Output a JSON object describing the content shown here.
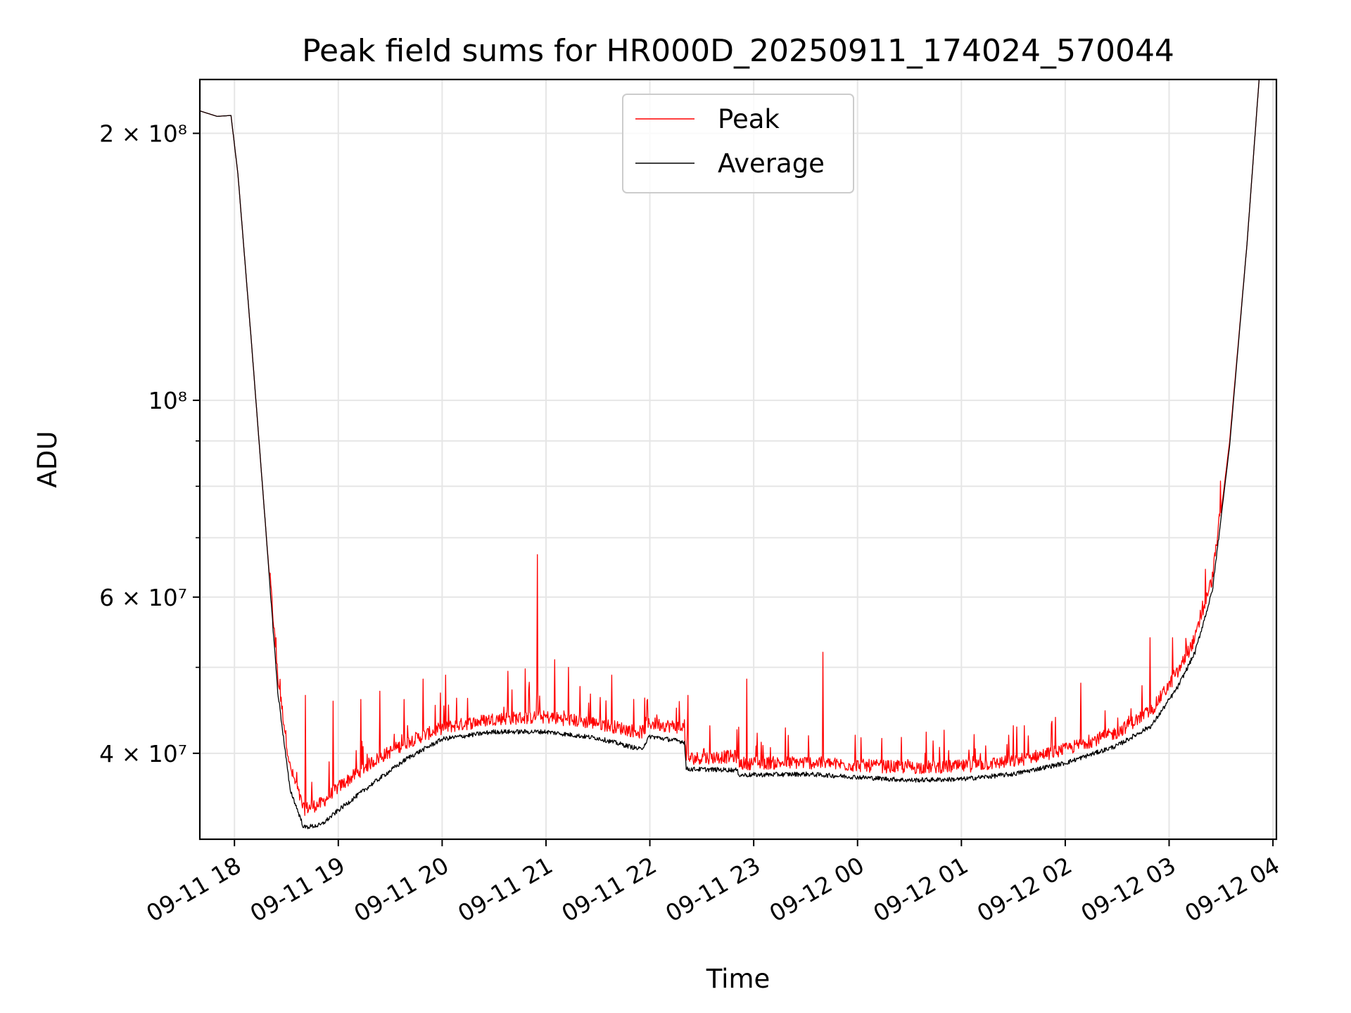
{
  "chart_data": {
    "type": "line",
    "title": "Peak field sums for HR000D_20250911_174024_570044",
    "xlabel": "Time",
    "ylabel": "ADU",
    "yscale": "log",
    "grid": true,
    "legend_position": "top-center",
    "x_ticks": [
      "09-11 18",
      "09-11 19",
      "09-11 20",
      "09-11 21",
      "09-11 22",
      "09-11 23",
      "09-12 00",
      "09-12 01",
      "09-12 02",
      "09-12 03",
      "09-12 04"
    ],
    "x_range": [
      "2025-09-11 17:40",
      "2025-09-12 04:02"
    ],
    "y_ticks_major": [
      {
        "value": 40000000,
        "label": "4 × 10⁷"
      },
      {
        "value": 60000000,
        "label": "6 × 10⁷"
      },
      {
        "value": 100000000,
        "label": "10⁸"
      },
      {
        "value": 200000000,
        "label": "2 × 10⁸"
      }
    ],
    "ylim": [
      32000000,
      230000000
    ],
    "series": [
      {
        "name": "Peak",
        "color": "#ff0000",
        "baseline": [
          [
            "2025-09-11 17:40",
            212000000
          ],
          [
            "2025-09-11 17:50",
            209000000
          ],
          [
            "2025-09-11 17:58",
            209500000
          ],
          [
            "2025-09-11 18:02",
            180000000
          ],
          [
            "2025-09-11 18:10",
            115000000
          ],
          [
            "2025-09-11 18:18",
            72000000
          ],
          [
            "2025-09-11 18:25",
            48000000
          ],
          [
            "2025-09-11 18:32",
            38000000
          ],
          [
            "2025-09-11 18:40",
            34000000
          ],
          [
            "2025-09-11 18:50",
            34500000
          ],
          [
            "2025-09-11 19:00",
            36000000
          ],
          [
            "2025-09-11 19:20",
            38500000
          ],
          [
            "2025-09-11 19:40",
            40500000
          ],
          [
            "2025-09-11 20:00",
            42000000
          ],
          [
            "2025-09-11 20:30",
            43000000
          ],
          [
            "2025-09-11 21:00",
            43200000
          ],
          [
            "2025-09-11 21:30",
            42500000
          ],
          [
            "2025-09-11 21:55",
            41500000
          ],
          [
            "2025-09-11 22:00",
            42500000
          ],
          [
            "2025-09-11 22:20",
            42000000
          ],
          [
            "2025-09-11 22:21",
            38800000
          ],
          [
            "2025-09-11 22:50",
            39000000
          ],
          [
            "2025-09-11 22:52",
            38300000
          ],
          [
            "2025-09-11 23:30",
            38400000
          ],
          [
            "2025-09-12 00:00",
            38100000
          ],
          [
            "2025-09-12 00:30",
            37900000
          ],
          [
            "2025-09-12 01:00",
            38000000
          ],
          [
            "2025-09-12 01:30",
            38500000
          ],
          [
            "2025-09-12 02:00",
            39700000
          ],
          [
            "2025-09-12 02:30",
            41500000
          ],
          [
            "2025-09-12 02:50",
            44000000
          ],
          [
            "2025-09-12 03:05",
            48500000
          ],
          [
            "2025-09-12 03:15",
            53000000
          ],
          [
            "2025-09-12 03:25",
            62000000
          ],
          [
            "2025-09-12 03:35",
            90000000
          ],
          [
            "2025-09-12 03:45",
            150000000
          ],
          [
            "2025-09-12 03:52",
            230000000
          ]
        ],
        "spikes": [
          [
            "2025-09-11 18:24",
            54000000
          ],
          [
            "2025-09-11 18:41",
            46500000
          ],
          [
            "2025-09-11 18:57",
            45800000
          ],
          [
            "2025-09-11 19:13",
            46000000
          ],
          [
            "2025-09-11 19:24",
            47000000
          ],
          [
            "2025-09-11 19:38",
            46000000
          ],
          [
            "2025-09-11 19:49",
            48500000
          ],
          [
            "2025-09-11 20:02",
            49000000
          ],
          [
            "2025-09-11 20:38",
            49500000
          ],
          [
            "2025-09-11 20:48",
            49800000
          ],
          [
            "2025-09-11 20:55",
            67000000
          ],
          [
            "2025-09-11 21:05",
            51000000
          ],
          [
            "2025-09-11 21:13",
            50000000
          ],
          [
            "2025-09-11 21:38",
            49000000
          ],
          [
            "2025-09-11 22:22",
            46500000
          ],
          [
            "2025-09-11 22:56",
            48500000
          ],
          [
            "2025-09-11 23:40",
            52000000
          ],
          [
            "2025-09-12 02:09",
            48000000
          ],
          [
            "2025-09-12 02:49",
            54000000
          ],
          [
            "2025-09-12 03:02",
            54000000
          ],
          [
            "2025-09-12 03:10",
            53000000
          ],
          [
            "2025-09-12 03:18",
            58000000
          ]
        ]
      },
      {
        "name": "Average",
        "color": "#000000",
        "baseline": [
          [
            "2025-09-11 17:40",
            212000000
          ],
          [
            "2025-09-11 17:50",
            209000000
          ],
          [
            "2025-09-11 17:58",
            209500000
          ],
          [
            "2025-09-11 18:02",
            180000000
          ],
          [
            "2025-09-11 18:10",
            115000000
          ],
          [
            "2025-09-11 18:18",
            72000000
          ],
          [
            "2025-09-11 18:25",
            47000000
          ],
          [
            "2025-09-11 18:32",
            36500000
          ],
          [
            "2025-09-11 18:40",
            33000000
          ],
          [
            "2025-09-11 18:50",
            33200000
          ],
          [
            "2025-09-11 19:00",
            34500000
          ],
          [
            "2025-09-11 19:20",
            37000000
          ],
          [
            "2025-09-11 19:40",
            39500000
          ],
          [
            "2025-09-11 20:00",
            41500000
          ],
          [
            "2025-09-11 20:30",
            42300000
          ],
          [
            "2025-09-11 21:00",
            42300000
          ],
          [
            "2025-09-11 21:30",
            41600000
          ],
          [
            "2025-09-11 21:55",
            40400000
          ],
          [
            "2025-09-11 22:00",
            41800000
          ],
          [
            "2025-09-11 22:20",
            41200000
          ],
          [
            "2025-09-11 22:21",
            38400000
          ],
          [
            "2025-09-11 22:50",
            38300000
          ],
          [
            "2025-09-11 22:52",
            37800000
          ],
          [
            "2025-09-11 23:30",
            37900000
          ],
          [
            "2025-09-12 00:00",
            37600000
          ],
          [
            "2025-09-12 00:30",
            37300000
          ],
          [
            "2025-09-12 01:00",
            37400000
          ],
          [
            "2025-09-12 01:30",
            37900000
          ],
          [
            "2025-09-12 02:00",
            39000000
          ],
          [
            "2025-09-12 02:30",
            40800000
          ],
          [
            "2025-09-12 02:50",
            43000000
          ],
          [
            "2025-09-12 03:05",
            47500000
          ],
          [
            "2025-09-12 03:15",
            52000000
          ],
          [
            "2025-09-12 03:25",
            61000000
          ],
          [
            "2025-09-12 03:35",
            89000000
          ],
          [
            "2025-09-12 03:45",
            150000000
          ],
          [
            "2025-09-12 03:52",
            230000000
          ]
        ]
      }
    ]
  }
}
